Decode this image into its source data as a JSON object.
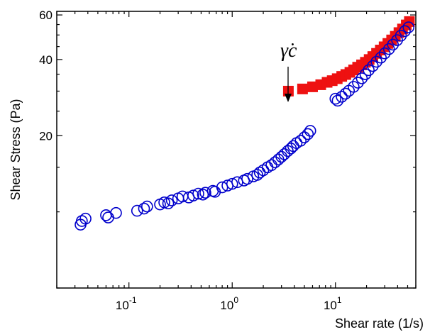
{
  "chart_data": {
    "type": "scatter",
    "xlabel": "Shear rate (1/s)",
    "ylabel": "Shear Stress (Pa)",
    "x_scale": "log",
    "y_scale": "log",
    "xlim": [
      0.02,
      60
    ],
    "ylim": [
      5,
      62
    ],
    "x_ticks": [
      {
        "value": 0.1,
        "base": "10",
        "exp": "-1"
      },
      {
        "value": 1,
        "base": "10",
        "exp": "0"
      },
      {
        "value": 10,
        "base": "10",
        "exp": "1"
      }
    ],
    "y_ticks": [
      {
        "value": 20,
        "label": "20"
      },
      {
        "value": 40,
        "label": "40"
      },
      {
        "value": 60,
        "label": "60"
      }
    ],
    "annotation": {
      "text": "γ̇c",
      "x": 3.5,
      "y": 30
    },
    "series": [
      {
        "marker": "square",
        "color": "#ee1111",
        "points": [
          [
            3.5,
            30.0
          ],
          [
            4.8,
            30.6
          ],
          [
            6.0,
            31.2
          ],
          [
            7.2,
            31.8
          ],
          [
            8.3,
            32.5
          ],
          [
            9.3,
            33.0
          ],
          [
            10.4,
            33.6
          ],
          [
            11.5,
            34.3
          ],
          [
            12.6,
            34.9
          ],
          [
            13.8,
            35.6
          ],
          [
            15.0,
            36.4
          ],
          [
            16.4,
            37.3
          ],
          [
            17.9,
            38.1
          ],
          [
            19.5,
            39.0
          ],
          [
            21.2,
            40.0
          ],
          [
            23.0,
            41.1
          ],
          [
            25.0,
            42.3
          ],
          [
            27.2,
            43.6
          ],
          [
            29.6,
            44.9
          ],
          [
            32.2,
            46.3
          ],
          [
            35.0,
            47.8
          ],
          [
            38.0,
            49.4
          ],
          [
            41.2,
            51.1
          ],
          [
            44.6,
            52.8
          ],
          [
            48.5,
            54.8
          ],
          [
            52.0,
            56.5
          ]
        ]
      },
      {
        "marker": "circle",
        "color": "#0000cc",
        "points": [
          [
            0.035,
            9.2
          ],
          [
            0.034,
            8.9
          ],
          [
            0.038,
            9.4
          ],
          [
            0.06,
            9.7
          ],
          [
            0.063,
            9.5
          ],
          [
            0.075,
            9.9
          ],
          [
            0.12,
            10.1
          ],
          [
            0.14,
            10.3
          ],
          [
            0.15,
            10.5
          ],
          [
            0.2,
            10.7
          ],
          [
            0.22,
            10.9
          ],
          [
            0.24,
            10.8
          ],
          [
            0.26,
            11.1
          ],
          [
            0.3,
            11.3
          ],
          [
            0.33,
            11.5
          ],
          [
            0.38,
            11.4
          ],
          [
            0.42,
            11.6
          ],
          [
            0.47,
            11.8
          ],
          [
            0.52,
            11.7
          ],
          [
            0.55,
            11.9
          ],
          [
            0.65,
            12.1
          ],
          [
            0.68,
            12.0
          ],
          [
            0.8,
            12.5
          ],
          [
            0.9,
            12.7
          ],
          [
            1.0,
            12.9
          ],
          [
            1.12,
            13.1
          ],
          [
            1.3,
            13.3
          ],
          [
            1.4,
            13.5
          ],
          [
            1.6,
            13.8
          ],
          [
            1.75,
            14.0
          ],
          [
            1.85,
            14.3
          ],
          [
            2.0,
            14.6
          ],
          [
            2.2,
            15.0
          ],
          [
            2.4,
            15.3
          ],
          [
            2.6,
            15.7
          ],
          [
            2.8,
            16.1
          ],
          [
            3.0,
            16.5
          ],
          [
            3.2,
            16.9
          ],
          [
            3.45,
            17.4
          ],
          [
            3.7,
            17.8
          ],
          [
            3.9,
            18.2
          ],
          [
            4.2,
            18.7
          ],
          [
            4.6,
            19.1
          ],
          [
            5.0,
            19.7
          ],
          [
            5.4,
            20.3
          ],
          [
            5.7,
            20.9
          ],
          [
            10.0,
            28.0
          ],
          [
            10.5,
            27.5
          ],
          [
            11.5,
            28.5
          ],
          [
            12.5,
            29.3
          ],
          [
            13.5,
            30.1
          ],
          [
            15.0,
            31.2
          ],
          [
            16.5,
            32.4
          ],
          [
            18.0,
            33.7
          ],
          [
            19.5,
            35.0
          ],
          [
            21.0,
            36.3
          ],
          [
            23.0,
            37.7
          ],
          [
            25.0,
            39.2
          ],
          [
            27.5,
            40.7
          ],
          [
            30.0,
            42.3
          ],
          [
            33.0,
            44.0
          ],
          [
            36.0,
            45.8
          ],
          [
            39.5,
            47.7
          ],
          [
            43.0,
            49.7
          ],
          [
            47.0,
            51.8
          ],
          [
            51.0,
            53.6
          ]
        ]
      }
    ]
  }
}
